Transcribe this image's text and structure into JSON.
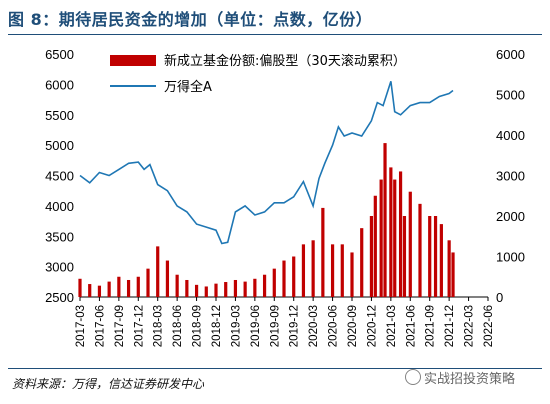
{
  "title": "图 8：期待居民资金的增加（单位：点数，亿份）",
  "source": "资料来源：万得，信达证券研发中心",
  "watermark": "实战招投资策略",
  "colors": {
    "bar": "#c00000",
    "line": "#1f77b4",
    "title": "#1f4e79"
  },
  "chart_data": {
    "type": "bar",
    "legend_placement": "top-left",
    "x_tick_labels": [
      "2017-03",
      "2017-06",
      "2017-09",
      "2017-12",
      "2018-03",
      "2018-06",
      "2018-09",
      "2018-12",
      "2019-03",
      "2019-06",
      "2019-09",
      "2019-12",
      "2020-03",
      "2020-06",
      "2020-09",
      "2020-12",
      "2021-03",
      "2021-06",
      "2021-09",
      "2021-12",
      "2022-03",
      "2022-06"
    ],
    "left_axis": {
      "min": 2500,
      "max": 6500,
      "ticks": [
        2500,
        3000,
        3500,
        4000,
        4500,
        5000,
        5500,
        6000,
        6500
      ]
    },
    "right_axis": {
      "min": 0,
      "max": 6000,
      "ticks": [
        0,
        1000,
        2000,
        3000,
        4000,
        5000,
        6000
      ]
    },
    "series": [
      {
        "name": "新成立基金份额:偏股型（30天滚动累积）",
        "type": "bar",
        "axis": "right",
        "x": [
          0,
          0.5,
          1,
          1.5,
          2,
          2.5,
          3,
          3.5,
          4,
          4.5,
          5,
          5.5,
          6,
          6.5,
          7,
          7.5,
          8,
          8.5,
          9,
          9.5,
          10,
          10.5,
          11,
          11.5,
          12,
          12.5,
          13,
          13.5,
          14,
          14.5,
          15,
          15.2,
          15.5,
          15.7,
          16,
          16.2,
          16.5,
          16.7,
          17,
          17.5,
          18,
          18.3,
          18.6,
          19,
          19.2
        ],
        "values": [
          450,
          320,
          280,
          380,
          500,
          420,
          500,
          700,
          1250,
          900,
          550,
          420,
          300,
          260,
          330,
          370,
          420,
          380,
          450,
          550,
          700,
          900,
          1000,
          1300,
          1400,
          2200,
          1300,
          1300,
          1100,
          1700,
          2000,
          2500,
          2900,
          3800,
          3200,
          2900,
          3100,
          2000,
          2600,
          2300,
          2000,
          2000,
          1800,
          1400,
          1100
        ]
      },
      {
        "name": "万得全A",
        "type": "line",
        "axis": "left",
        "x": [
          0,
          0.5,
          1,
          1.5,
          2,
          2.5,
          3,
          3.3,
          3.6,
          4,
          4.5,
          5,
          5.5,
          6,
          6.5,
          7,
          7.3,
          7.6,
          8,
          8.5,
          9,
          9.5,
          10,
          10.5,
          11,
          11.5,
          12,
          12.3,
          12.6,
          13,
          13.3,
          13.6,
          14,
          14.5,
          15,
          15.3,
          15.6,
          16,
          16.2,
          16.5,
          17,
          17.5,
          18,
          18.5,
          19,
          19.2
        ],
        "values": [
          4500,
          4380,
          4550,
          4500,
          4600,
          4700,
          4720,
          4600,
          4680,
          4350,
          4250,
          4000,
          3900,
          3700,
          3650,
          3600,
          3380,
          3400,
          3900,
          4000,
          3850,
          3900,
          4050,
          4050,
          4150,
          4400,
          4000,
          4450,
          4700,
          5000,
          5300,
          5150,
          5200,
          5150,
          5400,
          5700,
          5650,
          6050,
          5550,
          5500,
          5650,
          5700,
          5700,
          5800,
          5850,
          5900
        ]
      }
    ]
  }
}
